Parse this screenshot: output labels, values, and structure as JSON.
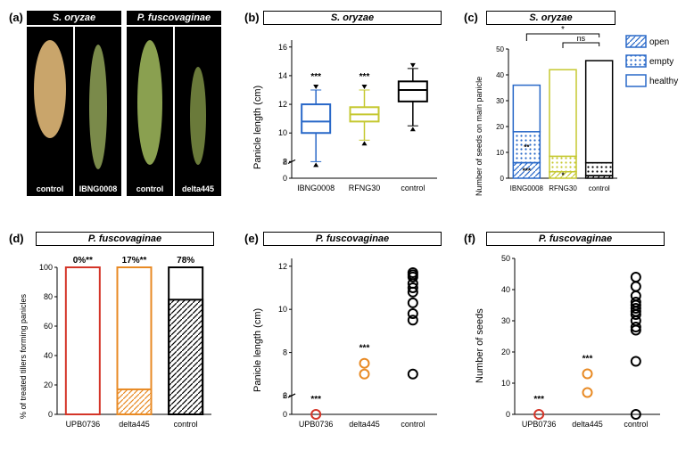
{
  "panels": {
    "a": {
      "label": "(a)",
      "species1": "S. oryzae",
      "species2": "P. fuscovaginae",
      "photos": [
        "control",
        "IBNG0008",
        "control",
        "delta445"
      ]
    },
    "b": {
      "label": "(b)",
      "title": "S. oryzae",
      "ylabel": "Panicle length (cm)",
      "ylim": [
        0,
        16
      ],
      "yticks": [
        0,
        2,
        8,
        10,
        12,
        14,
        16
      ],
      "categories": [
        "IBNG0008",
        "RFNG30",
        "control"
      ],
      "boxes": [
        {
          "color": "#2868c8",
          "min": 8,
          "q1": 10,
          "median": 10.8,
          "q3": 12,
          "max": 13,
          "sig": "***"
        },
        {
          "color": "#c5c830",
          "min": 9.5,
          "q1": 10.8,
          "median": 11.3,
          "q3": 11.8,
          "max": 13,
          "sig": "***"
        },
        {
          "color": "#000000",
          "min": 10.5,
          "q1": 12.2,
          "median": 13,
          "q3": 13.6,
          "max": 14.5,
          "sig": ""
        }
      ]
    },
    "c": {
      "label": "(c)",
      "title": "S. oryzae",
      "ylabel": "Number of seeds on main panicle",
      "ylim": [
        0,
        50
      ],
      "yticks": [
        0,
        10,
        20,
        30,
        40,
        50
      ],
      "categories": [
        "IBNG0008",
        "RFNG30",
        "control"
      ],
      "legend": [
        {
          "label": "open",
          "pattern": "hatch",
          "color": "#2868c8"
        },
        {
          "label": "empty",
          "pattern": "dots",
          "color": "#2868c8"
        },
        {
          "label": "healthy",
          "pattern": "none",
          "color": "#2868c8"
        }
      ],
      "bars": [
        {
          "color": "#2868c8",
          "open": 6,
          "empty": 12,
          "healthy": 18,
          "total": 36,
          "sigOpen": "***",
          "sigEmpty": "**"
        },
        {
          "color": "#c5c830",
          "open": 2.5,
          "empty": 6,
          "healthy": 33.5,
          "total": 42,
          "sigOpen": "*"
        },
        {
          "color": "#000000",
          "open": 1,
          "empty": 5,
          "healthy": 39.5,
          "total": 45.5
        }
      ],
      "brackets": [
        {
          "from": 0,
          "to": 2,
          "sig": "*"
        },
        {
          "from": 1,
          "to": 2,
          "sig": "ns"
        }
      ]
    },
    "d": {
      "label": "(d)",
      "title": "P. fuscovaginae",
      "ylabel": "% of treated tillers forming panicles",
      "ylim": [
        0,
        100
      ],
      "yticks": [
        0,
        20,
        40,
        60,
        80,
        100
      ],
      "categories": [
        "UPB0736",
        "delta445",
        "control"
      ],
      "bars": [
        {
          "color": "#d43528",
          "filled": 0,
          "label": "0%**"
        },
        {
          "color": "#e88a24",
          "filled": 17,
          "label": "17%**"
        },
        {
          "color": "#000000",
          "filled": 78,
          "label": "78%"
        }
      ]
    },
    "e": {
      "label": "(e)",
      "title": "P. fuscovaginae",
      "ylabel": "Panicle length (cm)",
      "ylim": [
        0,
        12
      ],
      "yticks": [
        0,
        2,
        6,
        8,
        10,
        12
      ],
      "categories": [
        "UPB0736",
        "delta445",
        "control"
      ],
      "points": [
        {
          "color": "#d43528",
          "values": [
            0
          ],
          "sig": "***"
        },
        {
          "color": "#e88a24",
          "values": [
            7,
            7.5
          ],
          "sig": "***"
        },
        {
          "color": "#000000",
          "values": [
            7,
            9.5,
            9.8,
            10.3,
            10.8,
            11,
            11.2,
            11.5,
            11.6,
            11.7
          ],
          "sig": ""
        }
      ]
    },
    "f": {
      "label": "(f)",
      "title": "P. fuscovaginae",
      "ylabel": "Number of seeds",
      "ylim": [
        0,
        50
      ],
      "yticks": [
        0,
        10,
        20,
        30,
        40,
        50
      ],
      "categories": [
        "UPB0736",
        "delta445",
        "control"
      ],
      "points": [
        {
          "color": "#d43528",
          "values": [
            0
          ],
          "sig": "***"
        },
        {
          "color": "#e88a24",
          "values": [
            7,
            13
          ],
          "sig": "***"
        },
        {
          "color": "#000000",
          "values": [
            0,
            17,
            27,
            28,
            30,
            32,
            33,
            34,
            35,
            36,
            38,
            41,
            44
          ],
          "sig": ""
        }
      ]
    }
  }
}
